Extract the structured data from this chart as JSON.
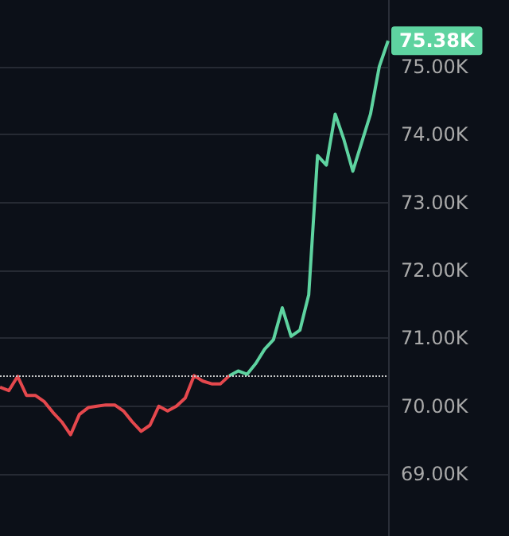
{
  "chart_data": {
    "type": "line",
    "categories": [
      null,
      null,
      null,
      null,
      null,
      null,
      null,
      null,
      null,
      null,
      null,
      null,
      null,
      null,
      null,
      null,
      null,
      null,
      null,
      null,
      null,
      null,
      null,
      null,
      null,
      null,
      null,
      null,
      null,
      null,
      null,
      null,
      null,
      null,
      null,
      null,
      null,
      null,
      null,
      null,
      null,
      null,
      null,
      null,
      null
    ],
    "series": [
      {
        "color": "#e5484d",
        "values": [
          70.28,
          70.23,
          70.44,
          70.16,
          70.16,
          70.07,
          69.91,
          69.77,
          69.58,
          69.88,
          69.98,
          70.0,
          70.02,
          70.02,
          69.93,
          69.77,
          69.63,
          69.72,
          70.0,
          69.93,
          70.0,
          70.12,
          70.45,
          70.37,
          70.33,
          70.33,
          70.45,
          null,
          null,
          null,
          null,
          null,
          null,
          null,
          null,
          null,
          null,
          null,
          null,
          null,
          null,
          null,
          null,
          null,
          null
        ]
      },
      {
        "color": "#5ed3a0",
        "values": [
          null,
          null,
          null,
          null,
          null,
          null,
          null,
          null,
          null,
          null,
          null,
          null,
          null,
          null,
          null,
          null,
          null,
          null,
          null,
          null,
          null,
          null,
          null,
          null,
          null,
          null,
          70.45,
          70.52,
          70.47,
          70.63,
          70.84,
          70.98,
          71.45,
          71.03,
          71.12,
          71.64,
          73.69,
          73.55,
          74.3,
          73.92,
          73.46,
          73.88,
          74.3,
          75.0,
          75.38
        ]
      }
    ],
    "ylim": [
      68.09,
      75.98
    ],
    "yticks": [
      {
        "value": 69,
        "label": "69.00K"
      },
      {
        "value": 70,
        "label": "70.00K"
      },
      {
        "value": 71,
        "label": "71.00K"
      },
      {
        "value": 72,
        "label": "72.00K"
      },
      {
        "value": 73,
        "label": "73.00K"
      },
      {
        "value": 74,
        "label": "74.00K"
      },
      {
        "value": 75,
        "label": "75.00K"
      }
    ],
    "grid": "y",
    "ref_lines": [
      {
        "axis": "y",
        "value": 70.45,
        "color": "#c8c8c8",
        "line_style": "dotted"
      }
    ],
    "annotations": [
      "75.38K"
    ],
    "line_style": "solid"
  }
}
